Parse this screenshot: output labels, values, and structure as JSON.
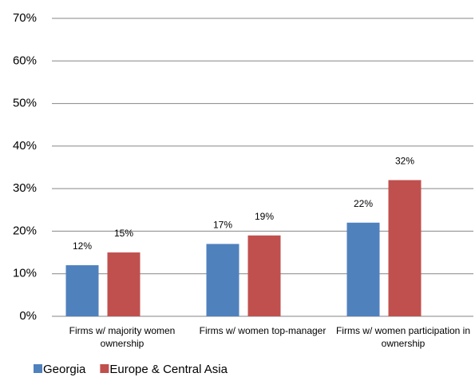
{
  "chart_data": {
    "type": "bar",
    "categories": [
      "Firms w/ majority women ownership",
      "Firms w/ women top-manager",
      "Firms w/ women participation in ownership"
    ],
    "series": [
      {
        "name": "Georgia",
        "color": "#4f81bd",
        "values": [
          12,
          17,
          22
        ],
        "value_labels": [
          "12%",
          "17%",
          "22%"
        ]
      },
      {
        "name": "Europe & Central Asia",
        "color": "#c0504d",
        "values": [
          15,
          19,
          32
        ],
        "value_labels": [
          "15%",
          "19%",
          "32%"
        ]
      }
    ],
    "ylim": [
      0,
      70
    ],
    "yticks": [
      {
        "value": 0,
        "label": "0%"
      },
      {
        "value": 10,
        "label": "10%"
      },
      {
        "value": 20,
        "label": "20%"
      },
      {
        "value": 30,
        "label": "30%"
      },
      {
        "value": 40,
        "label": "40%"
      },
      {
        "value": 50,
        "label": "50%"
      },
      {
        "value": 60,
        "label": "60%"
      },
      {
        "value": 70,
        "label": "70%"
      }
    ],
    "grid": true,
    "legend": "bottom"
  }
}
